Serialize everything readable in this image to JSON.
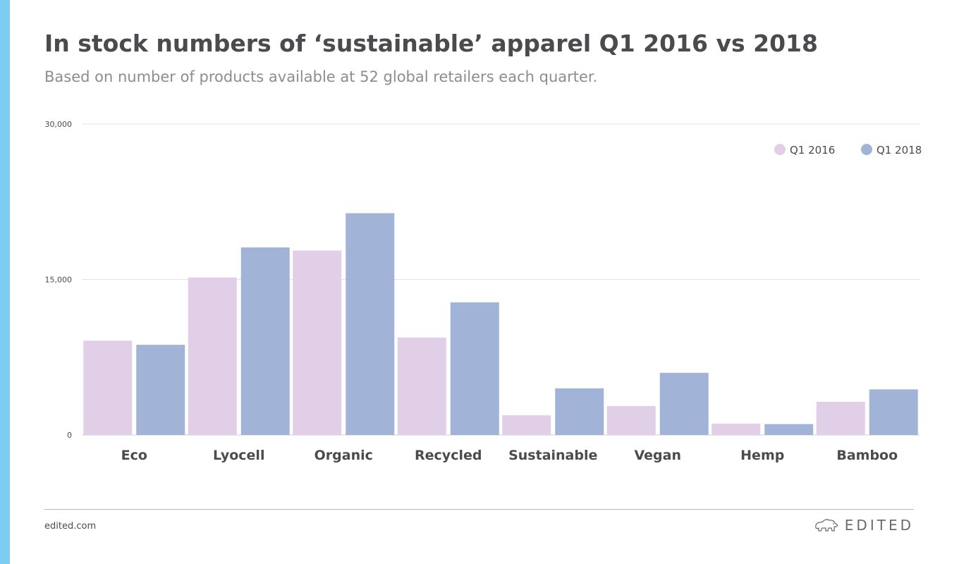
{
  "colors": {
    "accent_stripe": "#7dcdf3",
    "series_2016": "#e1cfe7",
    "series_2018": "#a2b3d8",
    "title": "#4a4a4f",
    "subtitle": "#8c8c92",
    "axis_text": "#4a4a4f",
    "gridline": "#e3e3e6"
  },
  "header": {
    "title": "In stock numbers of ‘sustainable’ apparel Q1 2016 vs 2018",
    "subtitle": "Based on number of products available at 52 global retailers each quarter."
  },
  "footer": {
    "site": "edited.com",
    "brand": "EDITED",
    "brand_icon": "polar-bear-icon"
  },
  "chart_data": {
    "type": "bar",
    "title": "In stock numbers of ‘sustainable’ apparel Q1 2016 vs 2018",
    "subtitle": "Based on number of products available at 52 global retailers each quarter.",
    "xlabel": "",
    "ylabel": "",
    "categories": [
      "Eco",
      "Lyocell",
      "Organic",
      "Recycled",
      "Sustainable",
      "Vegan",
      "Hemp",
      "Bamboo"
    ],
    "series": [
      {
        "name": "Q1 2016",
        "color": "#e1cfe7",
        "values": [
          9100,
          15200,
          17800,
          9400,
          1900,
          2800,
          1100,
          3200
        ]
      },
      {
        "name": "Q1 2018",
        "color": "#a2b3d8",
        "values": [
          8700,
          18100,
          21400,
          12800,
          4500,
          6000,
          1050,
          4400
        ]
      }
    ],
    "ylim": [
      0,
      30000
    ],
    "yticks": [
      0,
      15000,
      30000
    ],
    "ytick_labels": [
      "0",
      "15,000",
      "30,000"
    ],
    "grid": true,
    "legend_position": "top-right"
  }
}
